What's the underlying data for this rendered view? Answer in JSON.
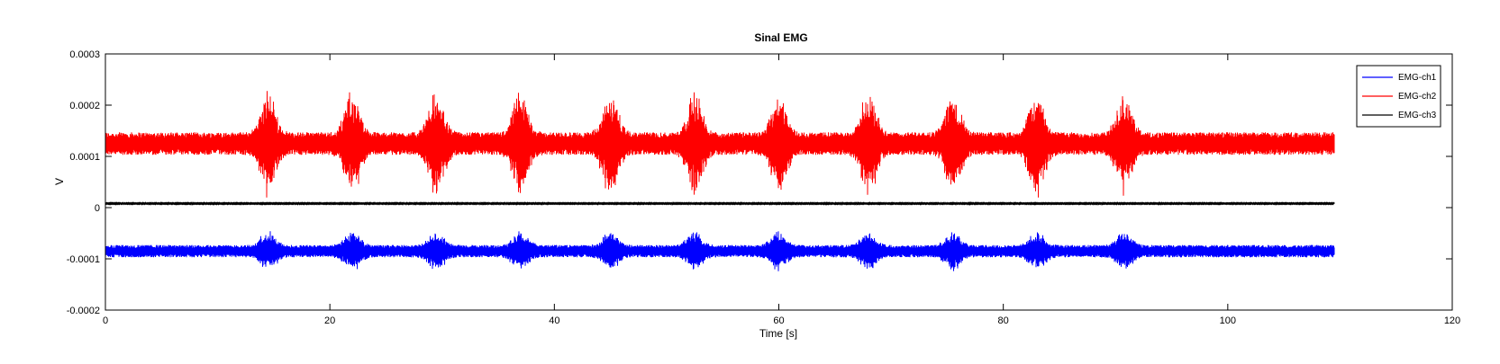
{
  "chart_data": {
    "type": "line",
    "title": "Sinal EMG",
    "xlabel": "Time [s]",
    "ylabel": "V",
    "xlim": [
      0,
      120
    ],
    "ylim": [
      -0.0002,
      0.0003
    ],
    "xticks": [
      0,
      20,
      40,
      60,
      80,
      100,
      120
    ],
    "xtick_labels": [
      "0",
      "20",
      "40",
      "60",
      "80",
      "100",
      "120"
    ],
    "yticks": [
      -0.0002,
      -0.0001,
      0,
      0.0001,
      0.0002,
      0.0003
    ],
    "ytick_labels": [
      "-0.0002",
      "-0.0001",
      "0",
      "0.0001",
      "0.0002",
      "0.0003"
    ],
    "grid": false,
    "legend_position": "top-right",
    "signal_end_time": 109.5,
    "burst_times": [
      14.5,
      22,
      29.5,
      37,
      45,
      52.5,
      60,
      68,
      75.5,
      83,
      90.8
    ],
    "series": [
      {
        "name": "EMG-ch1",
        "color": "#0000ff",
        "baseline": -8.5e-05,
        "noise_amplitude": 1.2e-05,
        "burst_amplitude": 3e-05
      },
      {
        "name": "EMG-ch2",
        "color": "#ff0000",
        "baseline": 0.000125,
        "noise_amplitude": 2.2e-05,
        "burst_amplitude": 9e-05
      },
      {
        "name": "EMG-ch3",
        "color": "#000000",
        "baseline": 8e-06,
        "noise_amplitude": 8e-07,
        "burst_amplitude": 0
      }
    ]
  }
}
